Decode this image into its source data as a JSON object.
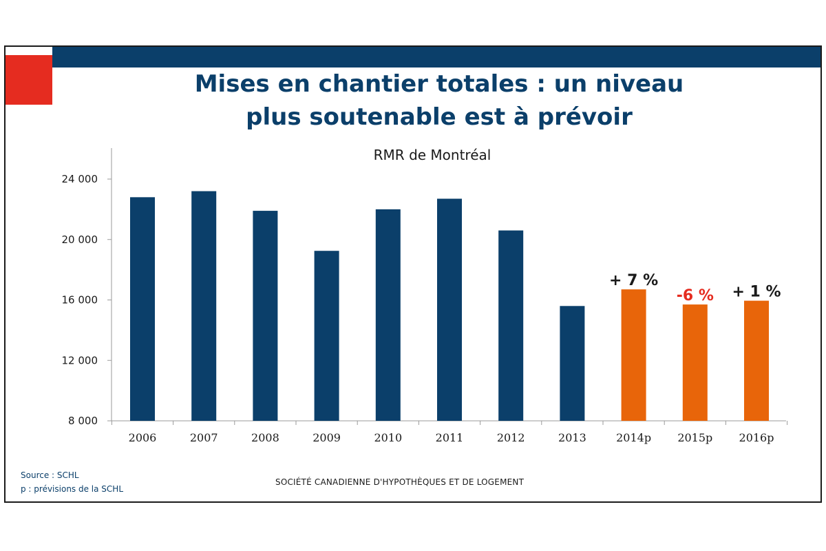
{
  "slide": {
    "title_line1": "Mises en chantier totales : un niveau",
    "title_line2": "plus soutenable est à prévoir",
    "source": "Source : SCHL",
    "note": "p : prévisions de la SCHL",
    "footer": "SOCIÉTÉ CANADIENNE D'HYPOTHÈQUES ET DE LOGEMENT",
    "colors": {
      "primary": "#0b3f6a",
      "accent_red": "#e52c20",
      "forecast": "#e8650a",
      "negative": "#e52c20"
    }
  },
  "chart_data": {
    "type": "bar",
    "title": "RMR de Montréal",
    "categories": [
      "2006",
      "2007",
      "2008",
      "2009",
      "2010",
      "2011",
      "2012",
      "2013",
      "2014p",
      "2015p",
      "2016p"
    ],
    "values": [
      22800,
      23200,
      21900,
      19250,
      22000,
      22700,
      20600,
      15600,
      16700,
      15700,
      15950
    ],
    "forecast": [
      false,
      false,
      false,
      false,
      false,
      false,
      false,
      false,
      true,
      true,
      true
    ],
    "yticks": [
      "8 000",
      "12 000",
      "16 000",
      "20 000",
      "24 000"
    ],
    "ytick_values": [
      8000,
      12000,
      16000,
      20000,
      24000
    ],
    "ylim": [
      8000,
      25600
    ],
    "annotations": [
      {
        "category": "2014p",
        "text": "+ 7 %",
        "color": "#1a1a1a"
      },
      {
        "category": "2015p",
        "text": "-6 %",
        "color": "#e52c20"
      },
      {
        "category": "2016p",
        "text": "+ 1 %",
        "color": "#1a1a1a"
      }
    ],
    "xlabel": "",
    "ylabel": ""
  }
}
